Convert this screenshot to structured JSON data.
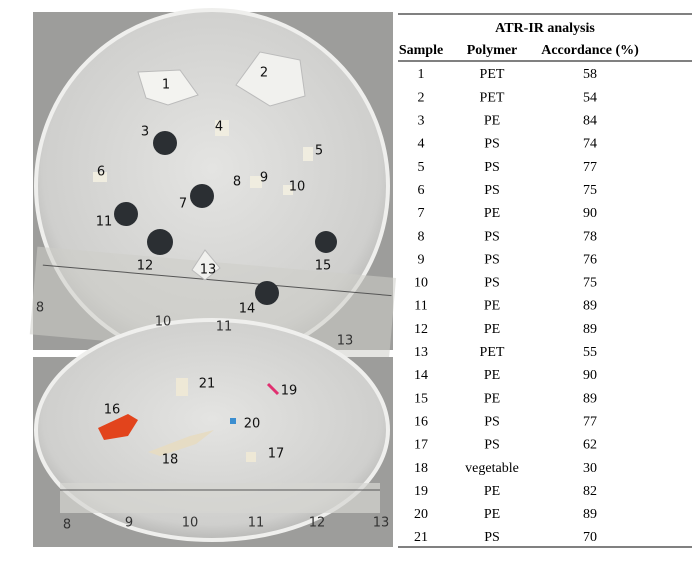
{
  "photos": [
    {
      "labels": [
        "1",
        "2",
        "3",
        "4",
        "5",
        "6",
        "7",
        "8",
        "9",
        "10",
        "11",
        "12",
        "13",
        "14",
        "15"
      ],
      "ruler": [
        "8",
        "10",
        "11",
        "13"
      ]
    },
    {
      "labels": [
        "16",
        "21",
        "19",
        "20",
        "18",
        "17"
      ],
      "ruler": [
        "8",
        "9",
        "10",
        "11",
        "12",
        "13"
      ]
    }
  ],
  "table": {
    "title": "ATR-IR analysis",
    "columns": [
      "Sample",
      "Polymer",
      "Accordance (%)"
    ],
    "rows": [
      [
        1,
        "PET",
        58
      ],
      [
        2,
        "PET",
        54
      ],
      [
        3,
        "PE",
        84
      ],
      [
        4,
        "PS",
        74
      ],
      [
        5,
        "PS",
        77
      ],
      [
        6,
        "PS",
        75
      ],
      [
        7,
        "PE",
        90
      ],
      [
        8,
        "PS",
        78
      ],
      [
        9,
        "PS",
        76
      ],
      [
        10,
        "PS",
        75
      ],
      [
        11,
        "PE",
        89
      ],
      [
        12,
        "PE",
        89
      ],
      [
        13,
        "PET",
        55
      ],
      [
        14,
        "PE",
        90
      ],
      [
        15,
        "PE",
        89
      ],
      [
        16,
        "PS",
        77
      ],
      [
        17,
        "PS",
        62
      ],
      [
        18,
        "vegetable",
        30
      ],
      [
        19,
        "PE",
        82
      ],
      [
        20,
        "PE",
        89
      ],
      [
        21,
        "PS",
        70
      ]
    ]
  }
}
